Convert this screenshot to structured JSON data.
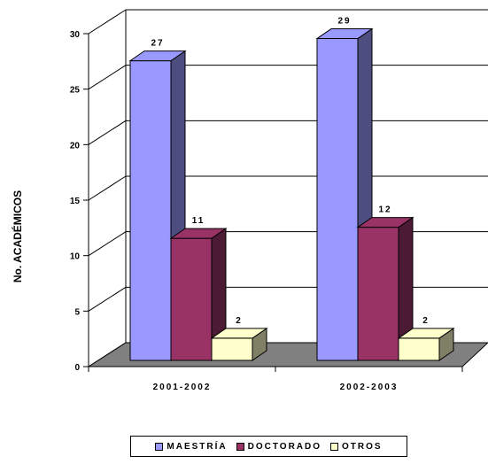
{
  "chart_data": {
    "type": "bar",
    "title": "",
    "xlabel": "",
    "ylabel": "No. ACADÉMICOS",
    "categories": [
      "2001-2002",
      "2002-2003"
    ],
    "ylim": [
      0,
      30
    ],
    "yticks": [
      0,
      5,
      10,
      15,
      20,
      25,
      30
    ],
    "grid": true,
    "legend_position": "bottom",
    "series": [
      {
        "name": "MAESTRÍA",
        "values": [
          27,
          29
        ],
        "color": "#9999ff",
        "side_color": "#4d4d80"
      },
      {
        "name": "DOCTORADO",
        "values": [
          11,
          12
        ],
        "color": "#993366",
        "side_color": "#4d1a33"
      },
      {
        "name": "OTROS",
        "values": [
          2,
          2
        ],
        "color": "#ffffcc",
        "side_color": "#808066"
      }
    ]
  }
}
